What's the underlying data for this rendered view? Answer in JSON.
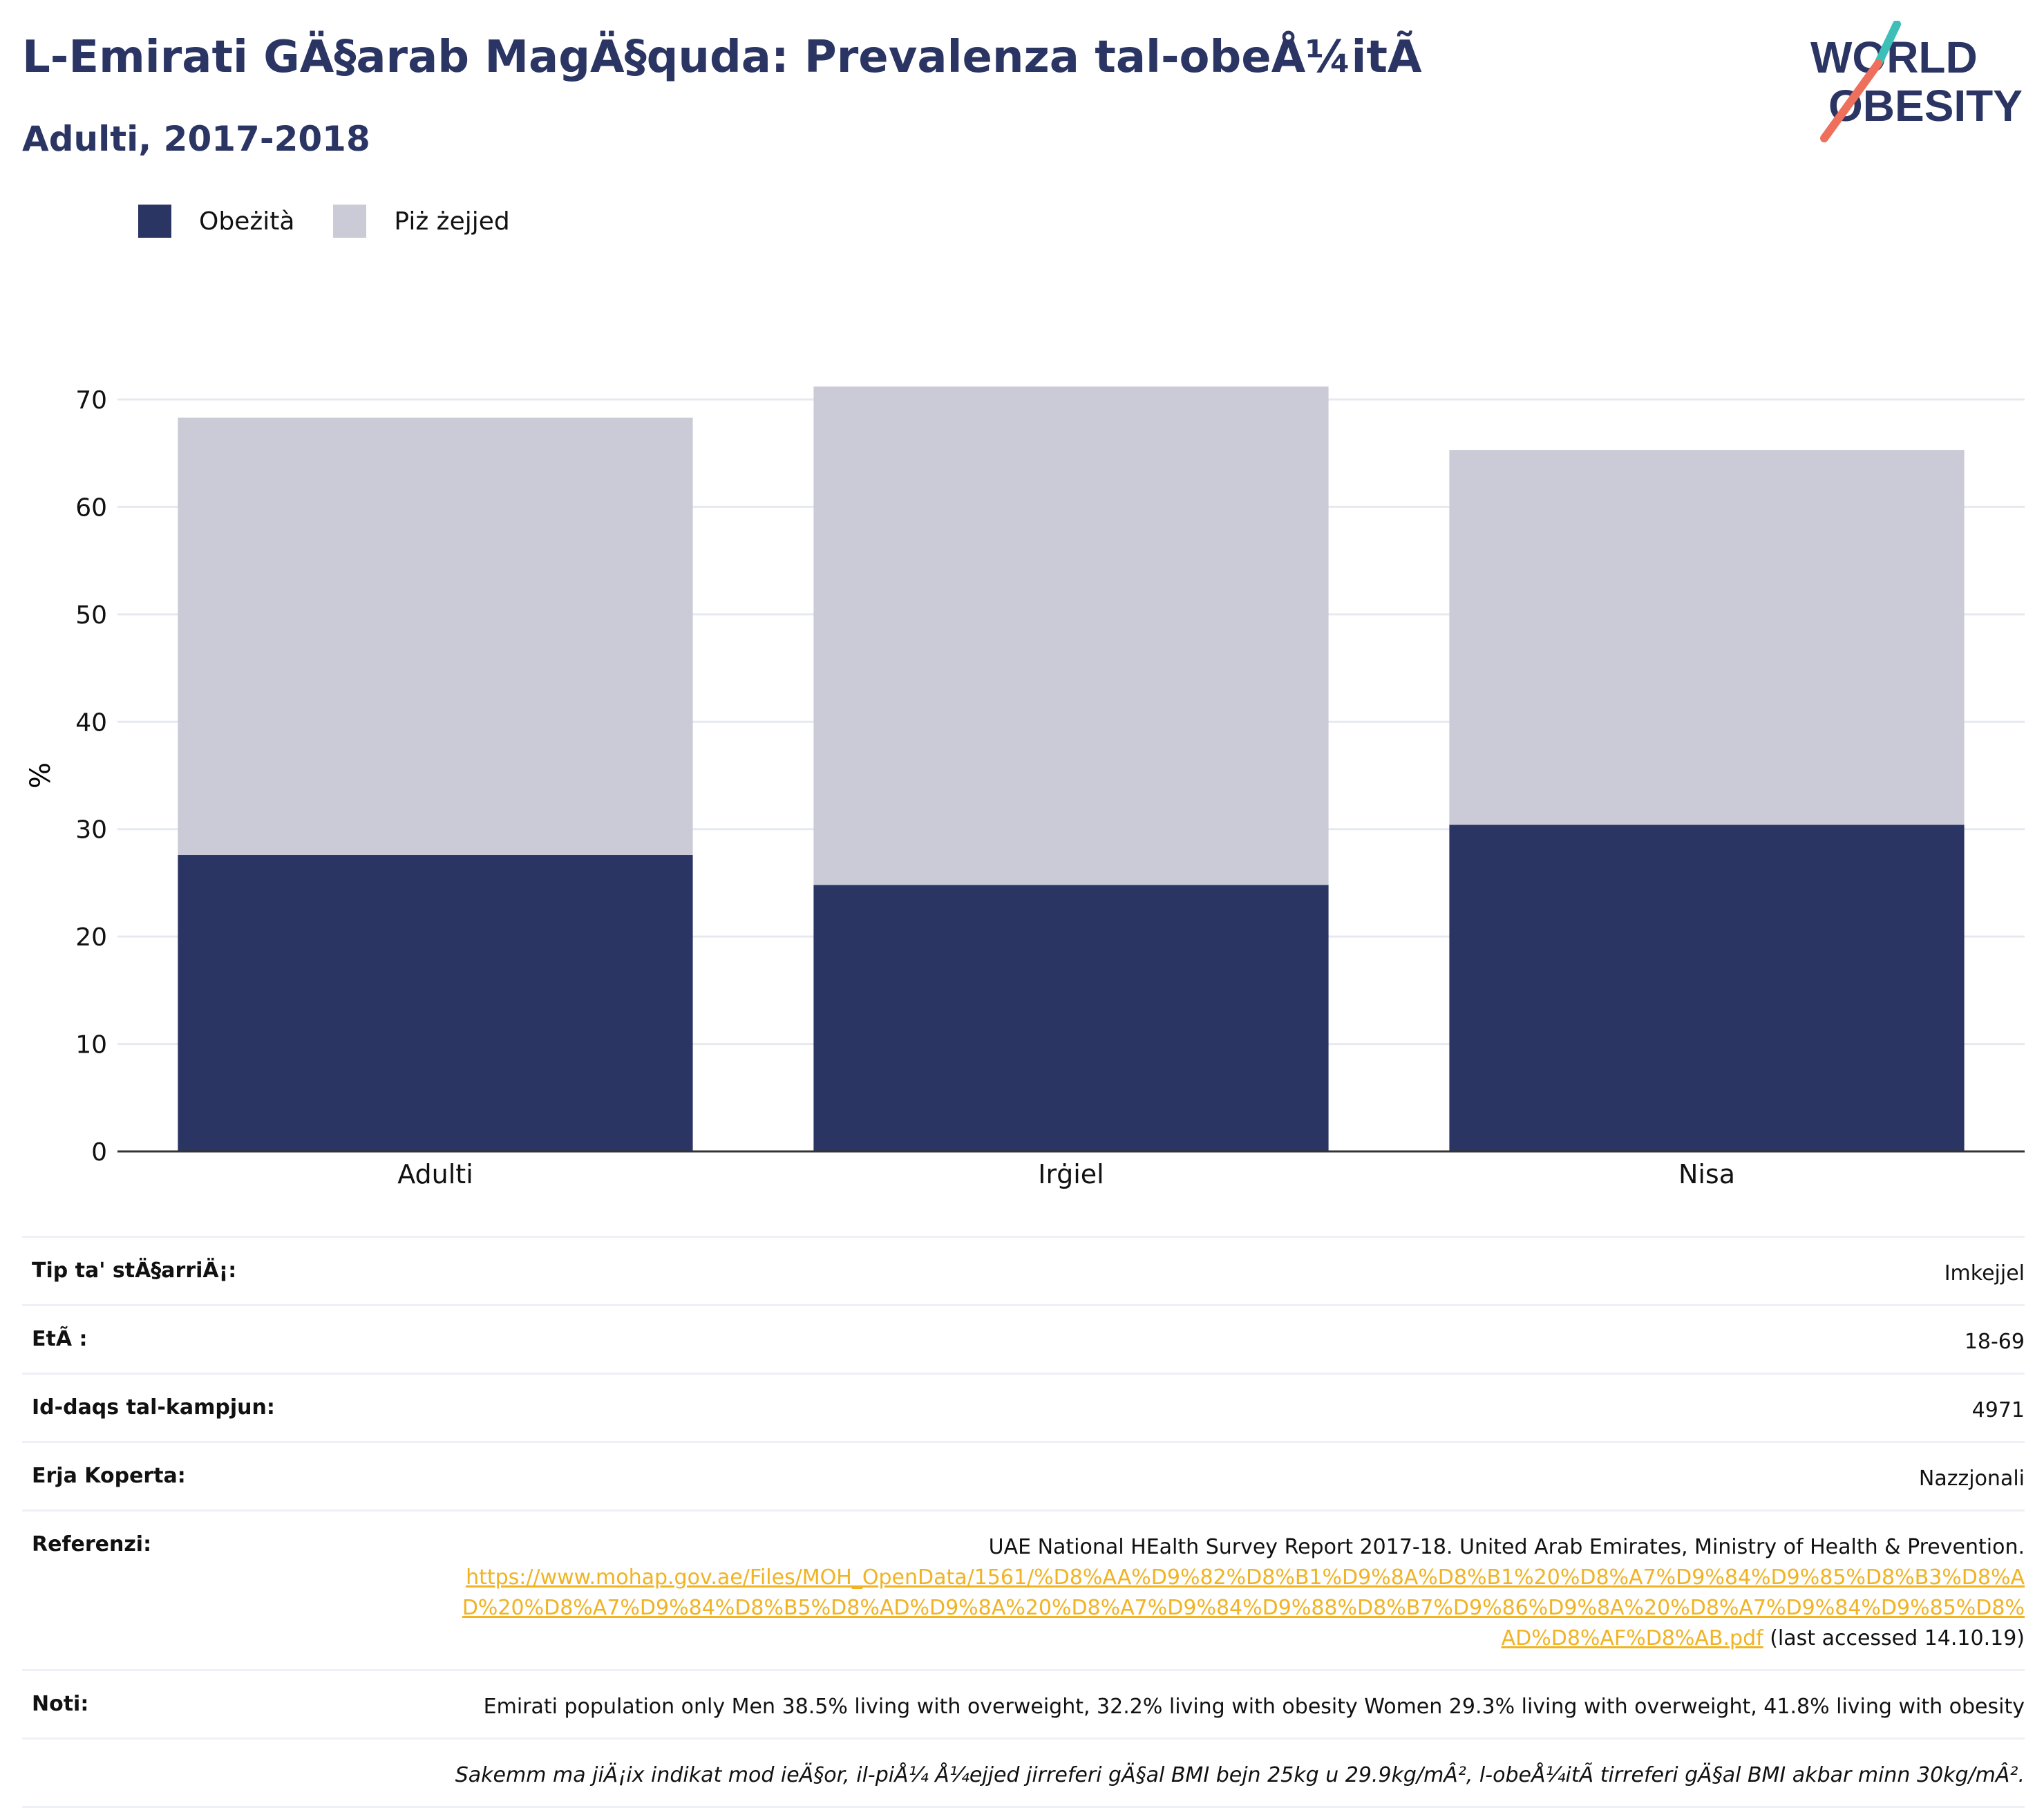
{
  "header": {
    "title": "L-Emirati GÄ§arab MagÄ§quda: Prevalenza tal-obeÅ¼itÃ",
    "subtitle": "Adulti, 2017-2018"
  },
  "logo": {
    "line1": "WORLD",
    "line2": "OBESITY"
  },
  "legend": [
    {
      "label": "Obeżità",
      "color": "#2b3563"
    },
    {
      "label": "Piż żejjed",
      "color": "#cacbd7"
    }
  ],
  "chart_data": {
    "type": "bar",
    "stacked": true,
    "categories": [
      "Adulti",
      "Irġiel",
      "Nisa"
    ],
    "series": [
      {
        "name": "Obeżità",
        "color": "#2b3563",
        "values": [
          27.6,
          24.8,
          30.4
        ]
      },
      {
        "name": "Piż żejjed",
        "color": "#cacbd7",
        "values": [
          40.7,
          46.4,
          34.9
        ]
      }
    ],
    "ylabel": "%",
    "ylim": [
      0,
      70
    ],
    "yticks": [
      0,
      10,
      20,
      30,
      40,
      50,
      60,
      70
    ],
    "grid": true,
    "legend_position": "top-left"
  },
  "info": {
    "rows": [
      {
        "key": "Tip ta' stÄ§arriÄ¡:",
        "value": "Imkejjel"
      },
      {
        "key": "EtÃ :",
        "value": "18-69"
      },
      {
        "key": "Id-daqs tal-kampjun:",
        "value": "4971"
      },
      {
        "key": "Erja Koperta:",
        "value": "Nazzjonali"
      }
    ],
    "references": {
      "key": "Referenzi:",
      "text": "UAE National HEalth Survey Report 2017-18. United Arab Emirates, Ministry of Health & Prevention.",
      "link": "https://www.mohap.gov.ae/Files/MOH_OpenData/1561/%D8%AA%D9%82%D8%B1%D9%8A%D8%B1%20%D8%A7%D9%84%D9%85%D8%B3%D8%AD%20%D8%A7%D9%84%D8%B5%D8%AD%D9%8A%20%D8%A7%D9%84%D9%88%D8%B7%D9%86%D9%8A%20%D8%A7%D9%84%D9%85%D8%AD%D8%AF%D8%AB.pdf",
      "accessed": " (last accessed 14.10.19)"
    },
    "notes": {
      "key": "Noti:",
      "value": "Emirati population only Men 38.5% living with overweight, 32.2% living with obesity Women 29.3% living with overweight, 41.8% living with obesity"
    },
    "footnote": "Sakemm ma jiÄ¡ix indikat mod ieÄ§or, il-piÅ¼ Å¼ejjed jirreferi gÄ§al BMI bejn 25kg u 29.9kg/mÂ², l-obeÅ¼itÃ  tirreferi gÄ§al BMI akbar minn 30kg/mÂ²."
  }
}
